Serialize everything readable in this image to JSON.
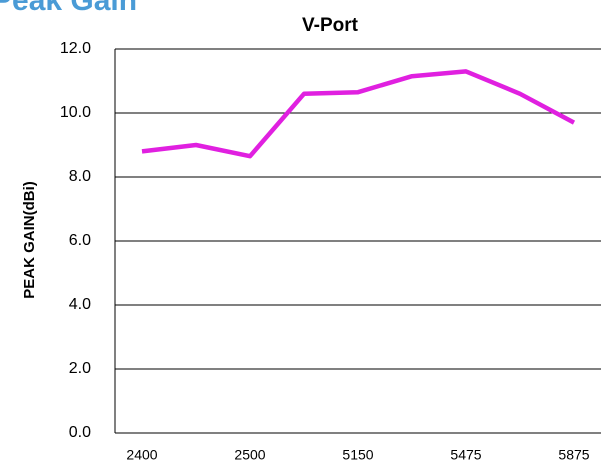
{
  "chart_data": {
    "type": "line",
    "heading": "Peak Gain",
    "title": "V-Port",
    "y_label": "PEAK GAIN(dBi)",
    "categories": [
      "2400",
      null,
      "2500",
      null,
      "5150",
      null,
      "5475",
      null,
      "5875"
    ],
    "series": [
      {
        "name": "V-Port",
        "color": "#e020e0",
        "values": [
          8.8,
          9.0,
          8.65,
          10.6,
          10.65,
          11.15,
          11.3,
          10.6,
          9.7
        ]
      }
    ],
    "ylim": [
      0,
      12
    ],
    "yticks": [
      {
        "value": 0,
        "label": "0.0"
      },
      {
        "value": 2,
        "label": "2.0"
      },
      {
        "value": 4,
        "label": "4.0"
      },
      {
        "value": 6,
        "label": "6.0"
      },
      {
        "value": 8,
        "label": "8.0"
      },
      {
        "value": 10,
        "label": "10.0"
      },
      {
        "value": 12,
        "label": "12.0"
      }
    ],
    "grid": true
  }
}
